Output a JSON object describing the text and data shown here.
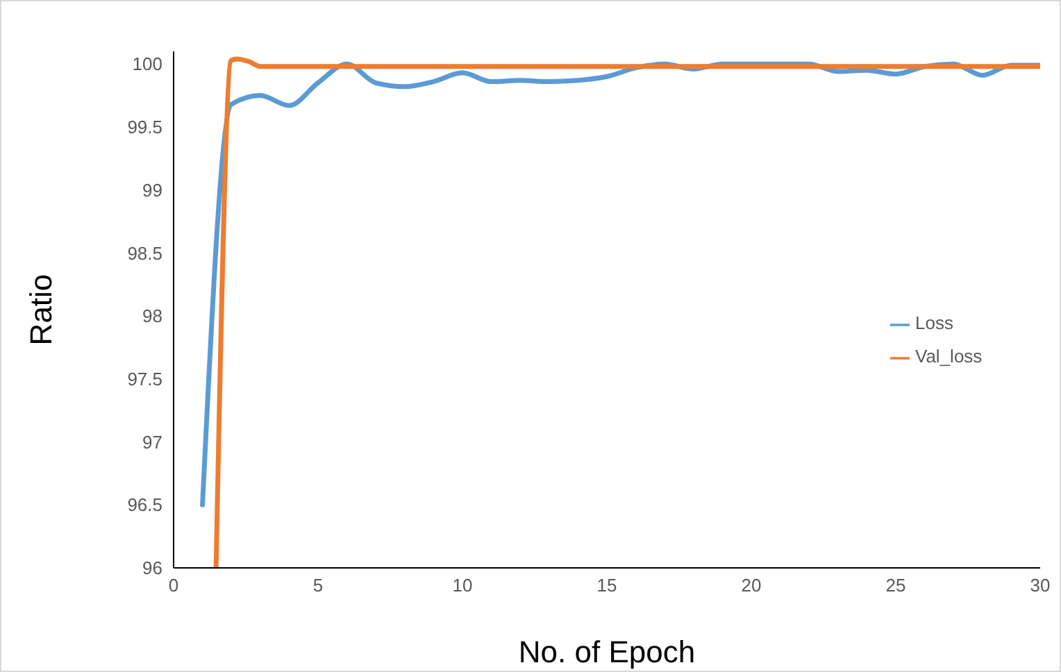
{
  "chart_data": {
    "type": "line",
    "xlabel": "No. of Epoch",
    "ylabel": "Ratio",
    "xlim": [
      0,
      30
    ],
    "xticks": [
      0,
      5,
      10,
      15,
      20,
      25,
      30
    ],
    "ylim": [
      96,
      100.1
    ],
    "yticks": [
      96,
      96.5,
      97,
      97.5,
      98,
      98.5,
      99,
      99.5,
      100
    ],
    "grid": false,
    "legend": "right",
    "marker": "none",
    "line_style": "solid",
    "series": [
      {
        "name": "Loss",
        "color": "#5b9bd5",
        "x": [
          1,
          2,
          3,
          4,
          5,
          6,
          7,
          8,
          9,
          10,
          11,
          12,
          13,
          14,
          15,
          16,
          17,
          18,
          19,
          20,
          21,
          22,
          23,
          24,
          25,
          26,
          27,
          28,
          29,
          30
        ],
        "values": [
          96.5,
          99.68,
          99.75,
          99.67,
          99.85,
          100,
          99.85,
          99.82,
          99.86,
          99.93,
          99.86,
          99.87,
          99.86,
          99.87,
          99.9,
          99.97,
          100,
          99.96,
          100,
          100,
          100,
          100,
          99.94,
          99.95,
          99.92,
          99.98,
          100,
          99.91,
          99.99,
          99.99
        ]
      },
      {
        "name": "Val_loss",
        "color": "#ed7d31",
        "x": [
          1.47,
          2,
          2.2,
          2.6,
          3,
          5,
          10,
          15,
          20,
          25,
          30
        ],
        "values": [
          96,
          100.03,
          100.04,
          100.02,
          99.98,
          99.98,
          99.98,
          99.98,
          99.98,
          99.98,
          99.98
        ]
      }
    ]
  }
}
